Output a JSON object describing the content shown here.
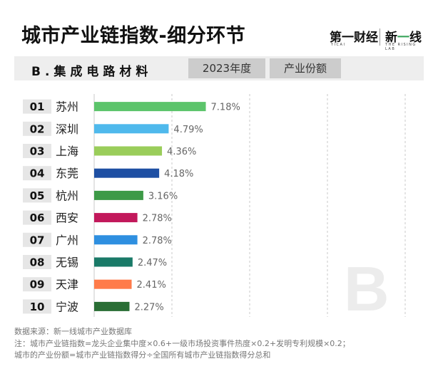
{
  "header": {
    "title": "城市产业链指数-细分环节",
    "brand_left": "第一财经",
    "brand_left_sub": "YICAI",
    "brand_right_pre": "新",
    "brand_right_accent": "一",
    "brand_right_post": "线",
    "brand_right_sub": "THE RISING LAB"
  },
  "subheader": {
    "section": "B.集成电路材料",
    "year_tag": "2023年度",
    "metric_tag": "产业份额"
  },
  "watermark": "B",
  "chart_data": {
    "type": "bar",
    "orientation": "horizontal",
    "categories": [
      "苏州",
      "深圳",
      "上海",
      "东莞",
      "杭州",
      "西安",
      "广州",
      "无锡",
      "天津",
      "宁波"
    ],
    "ranks": [
      "01",
      "02",
      "03",
      "04",
      "05",
      "06",
      "07",
      "08",
      "09",
      "10"
    ],
    "values": [
      7.18,
      4.79,
      4.36,
      4.18,
      3.16,
      2.78,
      2.78,
      2.47,
      2.41,
      2.27
    ],
    "labels": [
      "7.18%",
      "4.79%",
      "4.36%",
      "4.18%",
      "3.16%",
      "2.78%",
      "2.78%",
      "2.47%",
      "2.41%",
      "2.27%"
    ],
    "colors": [
      "#5cc46b",
      "#4fb9ec",
      "#9acd5a",
      "#1e4fa3",
      "#3d9a47",
      "#c2185b",
      "#2e8fe0",
      "#1a7a68",
      "#ff7b4a",
      "#2a6e35"
    ],
    "xlim": [
      0,
      20
    ],
    "grid": true
  },
  "footer": {
    "source": "数据来源：新一线城市产业数据库",
    "note1": "注：城市产业链指数=龙头企业集中度×0.6+一级市场投资事件热度×0.2+发明专利规模×0.2；",
    "note2": "城市的产业份额=城市产业链指数得分÷全国所有城市产业链指数得分总和"
  }
}
